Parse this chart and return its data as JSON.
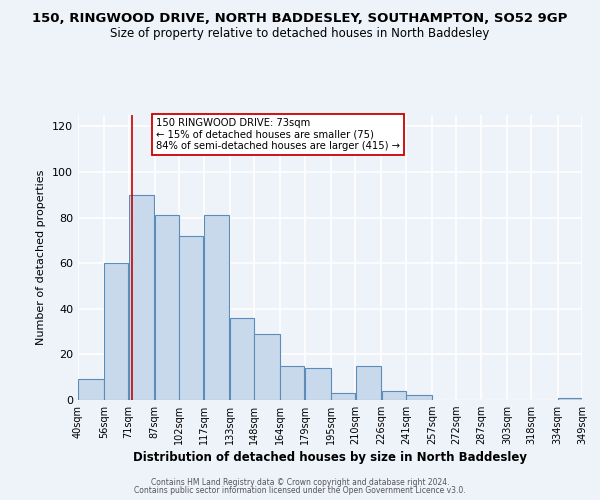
{
  "title_line1": "150, RINGWOOD DRIVE, NORTH BADDESLEY, SOUTHAMPTON, SO52 9GP",
  "title_line2": "Size of property relative to detached houses in North Baddesley",
  "xlabel": "Distribution of detached houses by size in North Baddesley",
  "ylabel": "Number of detached properties",
  "bar_edges": [
    40,
    56,
    71,
    87,
    102,
    117,
    133,
    148,
    164,
    179,
    195,
    210,
    226,
    241,
    257,
    272,
    287,
    303,
    318,
    334,
    349
  ],
  "bar_heights": [
    9,
    60,
    90,
    81,
    72,
    81,
    36,
    29,
    15,
    14,
    3,
    15,
    4,
    2,
    0,
    0,
    0,
    0,
    0,
    1
  ],
  "bar_color": "#c9d9ec",
  "bar_edge_color": "#5b8db8",
  "ylim": [
    0,
    125
  ],
  "yticks": [
    0,
    20,
    40,
    60,
    80,
    100,
    120
  ],
  "tick_labels": [
    "40sqm",
    "56sqm",
    "71sqm",
    "87sqm",
    "102sqm",
    "117sqm",
    "133sqm",
    "148sqm",
    "164sqm",
    "179sqm",
    "195sqm",
    "210sqm",
    "226sqm",
    "241sqm",
    "257sqm",
    "272sqm",
    "287sqm",
    "303sqm",
    "318sqm",
    "334sqm",
    "349sqm"
  ],
  "vline_x": 73,
  "vline_color": "#cc0000",
  "annotation_text_line1": "150 RINGWOOD DRIVE: 73sqm",
  "annotation_text_line2": "← 15% of detached houses are smaller (75)",
  "annotation_text_line3": "84% of semi-detached houses are larger (415) →",
  "footer_line1": "Contains HM Land Registry data © Crown copyright and database right 2024.",
  "footer_line2": "Contains public sector information licensed under the Open Government Licence v3.0.",
  "bg_color": "#eef2f9",
  "grid_color": "#ffffff",
  "title1_fontsize": 9.5,
  "title2_fontsize": 8.5
}
